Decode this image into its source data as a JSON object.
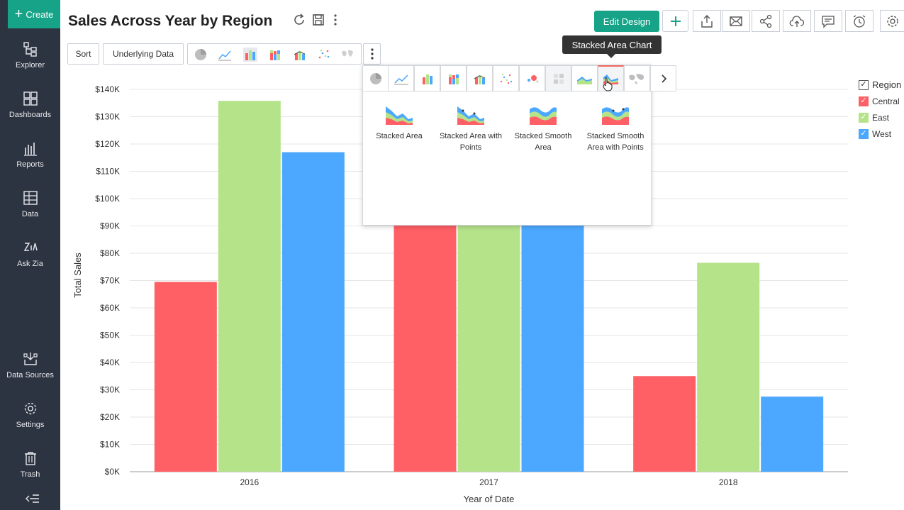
{
  "sidebar": {
    "create_label": "Create",
    "items": [
      {
        "label": "Explorer",
        "icon": "explorer-icon"
      },
      {
        "label": "Dashboards",
        "icon": "dashboards-icon"
      },
      {
        "label": "Reports",
        "icon": "reports-icon"
      },
      {
        "label": "Data",
        "icon": "data-icon"
      },
      {
        "label": "Ask Zia",
        "icon": "zia-icon"
      },
      {
        "label": "Data Sources",
        "icon": "data-sources-icon"
      },
      {
        "label": "Settings",
        "icon": "gear-icon"
      },
      {
        "label": "Trash",
        "icon": "trash-icon"
      }
    ]
  },
  "header": {
    "title": "Sales Across Year by Region",
    "edit_design_label": "Edit Design"
  },
  "toolbar2": {
    "sort_label": "Sort",
    "underlying_label": "Underlying Data"
  },
  "tooltip": {
    "text": "Stacked Area Chart"
  },
  "popup": {
    "subtypes": [
      {
        "label_line1": "Stacked Area",
        "label_line2": ""
      },
      {
        "label_line1": "Stacked Area with",
        "label_line2": "Points"
      },
      {
        "label_line1": "Stacked Smooth",
        "label_line2": "Area"
      },
      {
        "label_line1": "Stacked Smooth",
        "label_line2": "Area with Points"
      }
    ]
  },
  "legend": {
    "title": "Region",
    "items": [
      {
        "name": "Central",
        "color": "#ff6066"
      },
      {
        "name": "East",
        "color": "#b5e38a"
      },
      {
        "name": "West",
        "color": "#4ca8ff"
      }
    ]
  },
  "chart_data": {
    "type": "bar",
    "categories": [
      "2016",
      "2017",
      "2018"
    ],
    "series": [
      {
        "name": "Central",
        "color": "#ff6066",
        "values": [
          69500,
          115000,
          35000
        ]
      },
      {
        "name": "East",
        "color": "#b5e38a",
        "values": [
          135800,
          120000,
          76500
        ]
      },
      {
        "name": "West",
        "color": "#4ca8ff",
        "values": [
          117000,
          118000,
          27500
        ]
      }
    ],
    "xlabel": "Year of Date",
    "ylabel": "Total Sales",
    "ylim": [
      0,
      140000
    ],
    "yticks": [
      "$0K",
      "$10K",
      "$20K",
      "$30K",
      "$40K",
      "$50K",
      "$60K",
      "$70K",
      "$80K",
      "$90K",
      "$100K",
      "$110K",
      "$120K",
      "$130K",
      "$140K"
    ],
    "grid": true,
    "legend_placement": "right"
  }
}
